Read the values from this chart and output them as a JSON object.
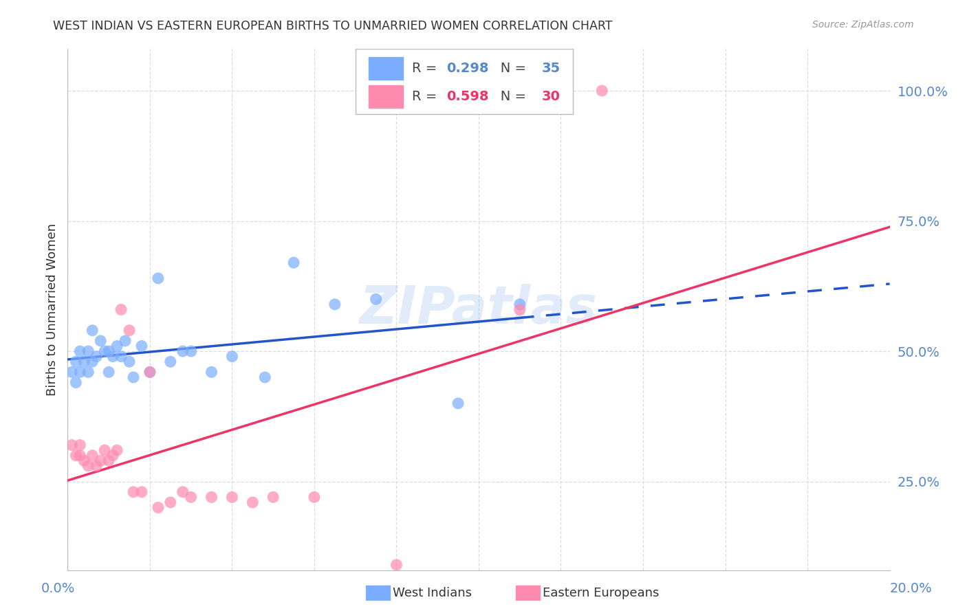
{
  "title": "WEST INDIAN VS EASTERN EUROPEAN BIRTHS TO UNMARRIED WOMEN CORRELATION CHART",
  "source": "Source: ZipAtlas.com",
  "ylabel": "Births to Unmarried Women",
  "ytick_labels": [
    "25.0%",
    "50.0%",
    "75.0%",
    "100.0%"
  ],
  "ytick_vals": [
    0.25,
    0.5,
    0.75,
    1.0
  ],
  "xlim": [
    0.0,
    0.2
  ],
  "ylim": [
    0.08,
    1.08
  ],
  "watermark": "ZIPatlas",
  "wi_R": 0.298,
  "wi_N": 35,
  "ee_R": 0.598,
  "ee_N": 30,
  "wi_label": "West Indians",
  "ee_label": "Eastern Europeans",
  "blue_scatter": "#7aadff",
  "pink_scatter": "#ff8ab0",
  "blue_line": "#2255cc",
  "pink_line": "#ee3366",
  "grid_color": "#dddddd",
  "bg_color": "#ffffff",
  "title_color": "#333333",
  "axis_color": "#5588cc",
  "source_color": "#999999",
  "west_indian_x": [
    0.001,
    0.002,
    0.002,
    0.003,
    0.003,
    0.004,
    0.005,
    0.005,
    0.006,
    0.006,
    0.007,
    0.008,
    0.009,
    0.01,
    0.01,
    0.011,
    0.012,
    0.013,
    0.014,
    0.015,
    0.016,
    0.018,
    0.02,
    0.022,
    0.025,
    0.028,
    0.03,
    0.035,
    0.04,
    0.048,
    0.055,
    0.065,
    0.075,
    0.095,
    0.11
  ],
  "west_indian_y": [
    0.46,
    0.48,
    0.44,
    0.5,
    0.46,
    0.48,
    0.5,
    0.46,
    0.54,
    0.48,
    0.49,
    0.52,
    0.5,
    0.5,
    0.46,
    0.49,
    0.51,
    0.49,
    0.52,
    0.48,
    0.45,
    0.51,
    0.46,
    0.64,
    0.48,
    0.5,
    0.5,
    0.46,
    0.49,
    0.45,
    0.67,
    0.59,
    0.6,
    0.4,
    0.59
  ],
  "eastern_european_x": [
    0.001,
    0.002,
    0.003,
    0.003,
    0.004,
    0.005,
    0.006,
    0.007,
    0.008,
    0.009,
    0.01,
    0.011,
    0.012,
    0.013,
    0.015,
    0.016,
    0.018,
    0.02,
    0.022,
    0.025,
    0.028,
    0.03,
    0.035,
    0.04,
    0.045,
    0.05,
    0.06,
    0.08,
    0.11,
    0.13
  ],
  "eastern_european_y": [
    0.32,
    0.3,
    0.32,
    0.3,
    0.29,
    0.28,
    0.3,
    0.28,
    0.29,
    0.31,
    0.29,
    0.3,
    0.31,
    0.58,
    0.54,
    0.23,
    0.23,
    0.46,
    0.2,
    0.21,
    0.23,
    0.22,
    0.22,
    0.22,
    0.21,
    0.22,
    0.22,
    0.09,
    0.58,
    1.0
  ]
}
